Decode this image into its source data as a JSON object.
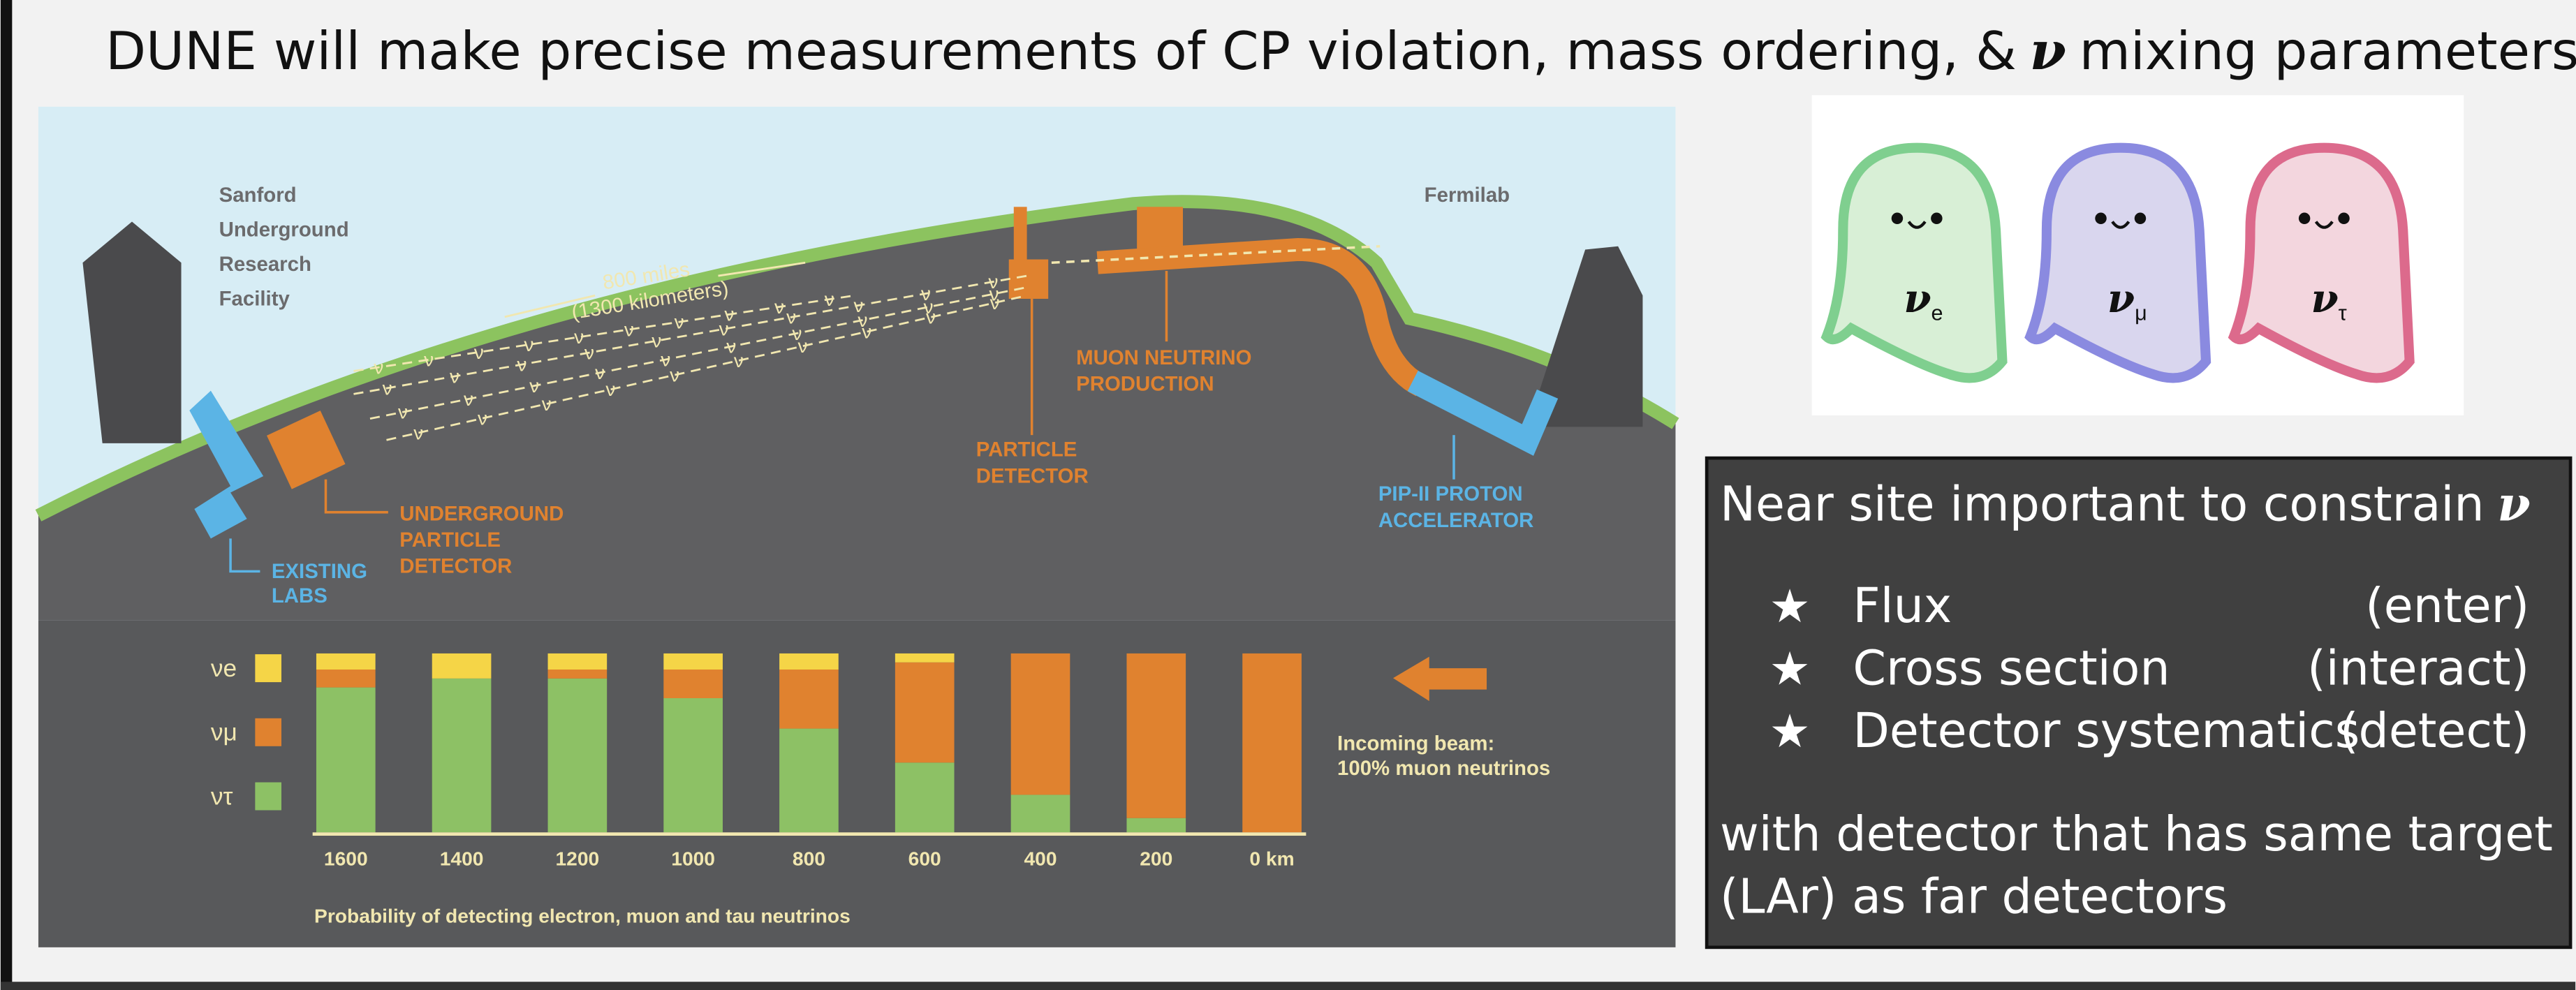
{
  "slide": {
    "title_before": "DUNE will make precise measurements of CP violation, mass ordering, &",
    "title_symbol": "ν",
    "title_after": "mixing parameters"
  },
  "diagram": {
    "far_site": [
      "Sanford",
      "Underground",
      "Research",
      "Facility"
    ],
    "near_site": "Fermilab",
    "distance": [
      "800 miles",
      "(1300 kilometers)"
    ],
    "muon_production": [
      "MUON NEUTRINO",
      "PRODUCTION"
    ],
    "near_detector": [
      "PARTICLE",
      "DETECTOR"
    ],
    "far_detector": [
      "UNDERGROUND",
      "PARTICLE",
      "DETECTOR"
    ],
    "labs": [
      "EXISTING",
      "LABS"
    ],
    "accelerator": [
      "PIP-II PROTON",
      "ACCELERATOR"
    ],
    "beam_symbol": "ν",
    "incoming": [
      "Incoming beam:",
      "100% muon neutrinos"
    ]
  },
  "chart_data": {
    "type": "stacked_bar",
    "title": "Probability of detecting electron, muon and tau neutrinos",
    "categories": [
      "1600",
      "1400",
      "1200",
      "1000",
      "800",
      "600",
      "400",
      "200",
      "0 km"
    ],
    "series": [
      {
        "name": "νe",
        "color": "#f5d547",
        "values": [
          9,
          14,
          9,
          9,
          9,
          5,
          0,
          0,
          0
        ]
      },
      {
        "name": "νμ",
        "color": "#e0822f",
        "values": [
          10,
          0,
          5,
          16,
          33,
          56,
          79,
          92,
          100
        ]
      },
      {
        "name": "ντ",
        "color": "#8dc165",
        "values": [
          81,
          86,
          86,
          75,
          58,
          39,
          21,
          8,
          0
        ]
      }
    ],
    "ylim": [
      0,
      100
    ]
  },
  "ghosts": [
    {
      "symbol": "ν",
      "sub": "e",
      "color": "#7fcf8f",
      "fill": "#d8efd6"
    },
    {
      "symbol": "ν",
      "sub": "μ",
      "color": "#8a8ae0",
      "fill": "#d9d6ee"
    },
    {
      "symbol": "ν",
      "sub": "τ",
      "color": "#dc6a8c",
      "fill": "#f3d6de"
    }
  ],
  "box": {
    "heading": "Near site important to constrain",
    "heading_symbol": "ν",
    "bullet": "★",
    "items": [
      {
        "label": "Flux",
        "note": "(enter)"
      },
      {
        "label": "Cross section",
        "note": "(interact)"
      },
      {
        "label": "Detector systematics",
        "note": "(detect)"
      }
    ],
    "footer": [
      "with detector that has same target",
      " (LAr) as far detectors"
    ]
  }
}
